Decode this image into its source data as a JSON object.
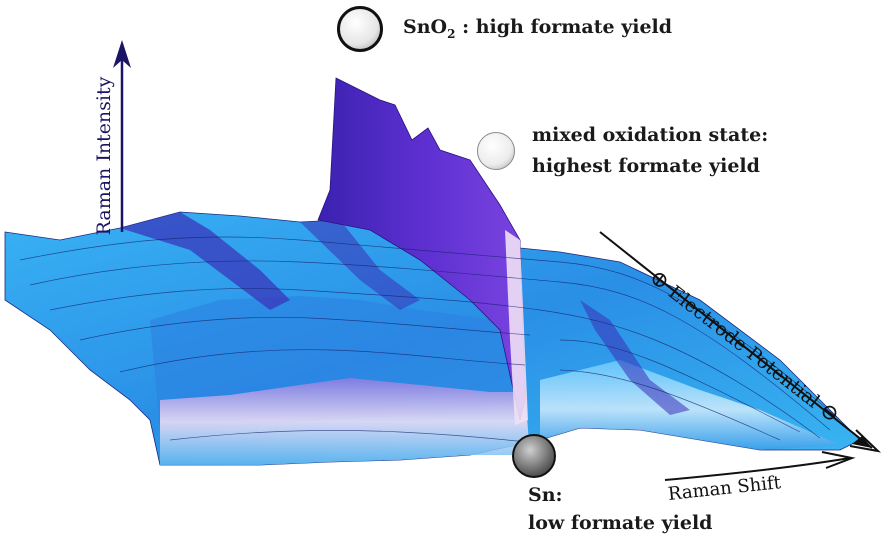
{
  "axes": {
    "y_label": "Raman Intensity",
    "x_label": "Raman Shift",
    "z_label": "Electrode Potential",
    "z_plus": "⊕",
    "z_minus": "⊖"
  },
  "annotations": {
    "sno2": {
      "formula_main": "SnO",
      "formula_sub": "2",
      "text": ": high formate yield"
    },
    "mixed": {
      "line1": "mixed oxidation state:",
      "line2": "highest formate yield"
    },
    "sn": {
      "line1": "Sn:",
      "line2": "low formate yield"
    }
  },
  "colors": {
    "surface_main": "#2aa0f0",
    "surface_dark": "#3b2fb8",
    "peak": "#5224c8",
    "edge_light": "#f2dcf0",
    "axis": "#1b1464"
  }
}
